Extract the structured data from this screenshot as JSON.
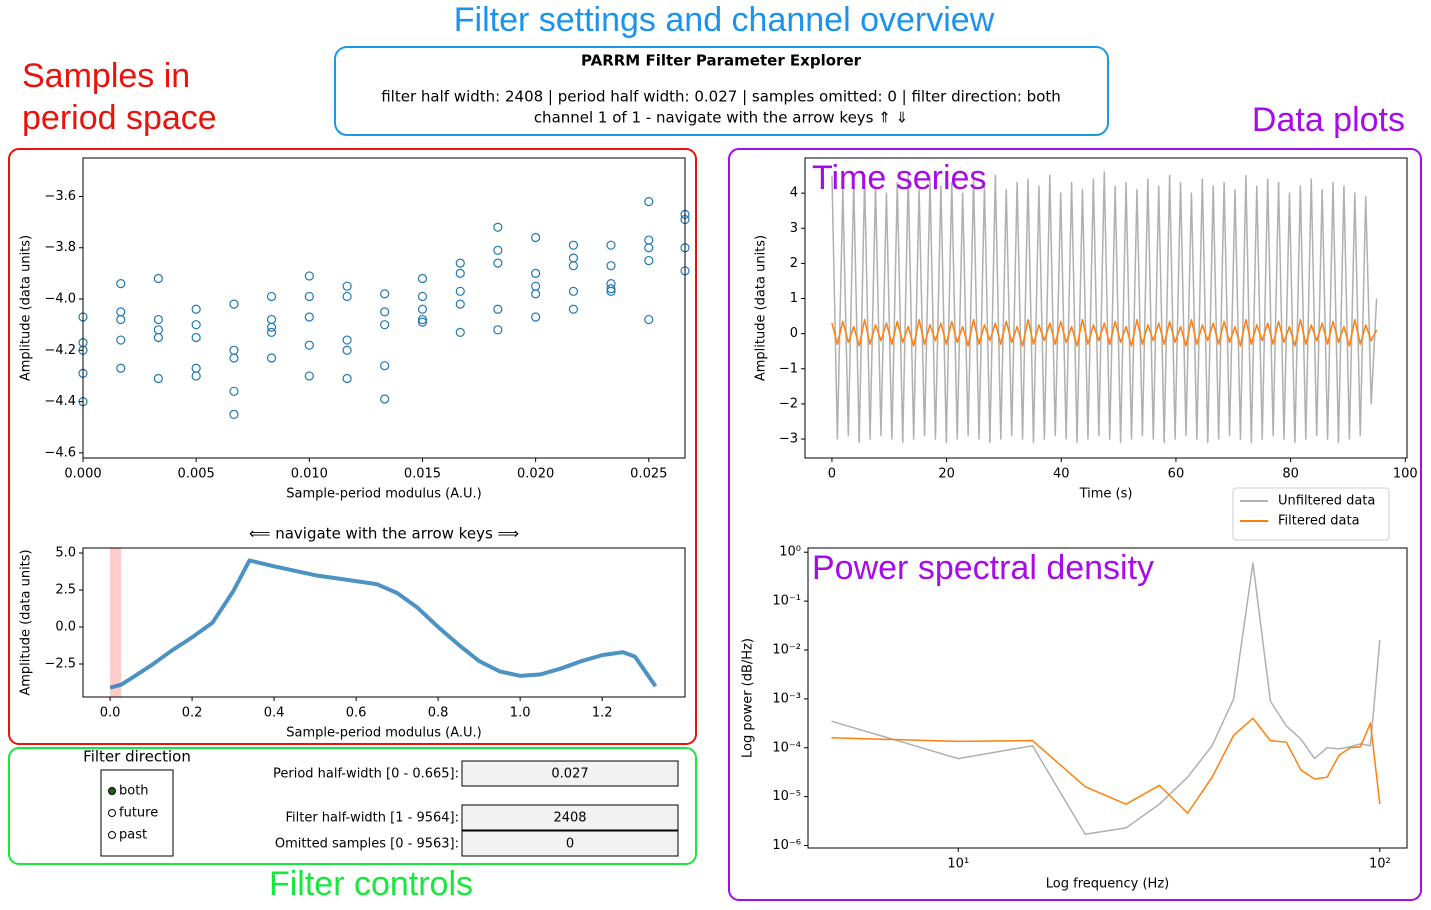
{
  "annotations": {
    "overview": "Filter settings and channel overview",
    "samples": [
      "Samples in",
      "period space"
    ],
    "data_plots": "Data plots",
    "controls": "Filter controls",
    "time_series": "Time series",
    "psd": "Power spectral density"
  },
  "header": {
    "title": "PARRM Filter Parameter Explorer",
    "settings": "filter half width: 2408 | period half width: 0.027 | samples omitted: 0 | filter direction: both",
    "channel": "channel 1 of 1 - navigate with the arrow keys  ⇑ ⇓"
  },
  "controls": {
    "direction_title": "Filter direction",
    "directions": [
      "both",
      "future",
      "past"
    ],
    "selected": "both",
    "fields": [
      {
        "label": "Period half-width [0 - 0.665]:",
        "value": "0.027"
      },
      {
        "label": "Filter half-width [1 - 9564]:",
        "value": "2408"
      },
      {
        "label": "Omitted samples [0 - 9563]:",
        "value": "0"
      }
    ]
  },
  "chart_data": [
    {
      "type": "scatter",
      "xlabel": "Sample-period modulus (A.U.)",
      "ylabel": "Amplitude (data units)",
      "color": "#1f77b4",
      "x": [
        0,
        0,
        0,
        0,
        0,
        0.00167,
        0.00167,
        0.00167,
        0.00167,
        0.00167,
        0.00333,
        0.00333,
        0.00333,
        0.00333,
        0.00333,
        0.005,
        0.005,
        0.005,
        0.005,
        0.005,
        0.00667,
        0.00667,
        0.00667,
        0.00667,
        0.00667,
        0.00833,
        0.00833,
        0.00833,
        0.00833,
        0.00833,
        0.01,
        0.01,
        0.01,
        0.01,
        0.01,
        0.01167,
        0.01167,
        0.01167,
        0.01167,
        0.01167,
        0.01333,
        0.01333,
        0.01333,
        0.01333,
        0.01333,
        0.015,
        0.015,
        0.015,
        0.015,
        0.015,
        0.01667,
        0.01667,
        0.01667,
        0.01667,
        0.01667,
        0.01833,
        0.01833,
        0.01833,
        0.01833,
        0.01833,
        0.02,
        0.02,
        0.02,
        0.02,
        0.02,
        0.02167,
        0.02167,
        0.02167,
        0.02167,
        0.02167,
        0.02333,
        0.02333,
        0.02333,
        0.02333,
        0.02333,
        0.025,
        0.025,
        0.025,
        0.025,
        0.025,
        0.0266,
        0.0266,
        0.0266,
        0.0266
      ],
      "values": [
        -4.07,
        -4.17,
        -4.2,
        -4.29,
        -4.4,
        -3.94,
        -4.05,
        -4.08,
        -4.16,
        -4.27,
        -3.92,
        -4.08,
        -4.12,
        -4.15,
        -4.31,
        -4.04,
        -4.1,
        -4.15,
        -4.27,
        -4.3,
        -4.02,
        -4.2,
        -4.23,
        -4.36,
        -4.45,
        -3.99,
        -4.08,
        -4.11,
        -4.13,
        -4.23,
        -3.91,
        -3.99,
        -4.07,
        -4.18,
        -4.3,
        -3.95,
        -3.99,
        -4.16,
        -4.2,
        -4.31,
        -3.98,
        -4.05,
        -4.1,
        -4.26,
        -4.39,
        -3.92,
        -3.99,
        -4.04,
        -4.08,
        -4.09,
        -3.86,
        -3.9,
        -3.97,
        -4.02,
        -4.13,
        -3.72,
        -3.81,
        -3.86,
        -4.04,
        -4.12,
        -3.76,
        -3.9,
        -3.95,
        -3.98,
        -4.07,
        -3.79,
        -3.84,
        -3.87,
        -3.97,
        -4.04,
        -3.79,
        -3.87,
        -3.94,
        -3.96,
        -3.97,
        -3.62,
        -3.77,
        -3.8,
        -3.85,
        -4.08,
        -3.67,
        -3.69,
        -3.8,
        -3.89
      ],
      "xlim": [
        0,
        0.0266
      ],
      "ylim": [
        -4.62,
        -3.45
      ],
      "xticks": [
        {
          "value": 0,
          "label": "0.000"
        },
        0.005,
        {
          "value": 0.01,
          "label": "0.010"
        },
        0.015,
        {
          "value": 0.02,
          "label": "0.020"
        },
        0.025
      ],
      "yticks": [
        {
          "value": -4.6,
          "label": "−4.6"
        },
        {
          "value": -4.4,
          "label": "−4.4"
        },
        {
          "value": -4.2,
          "label": "−4.2"
        },
        {
          "value": -4.0,
          "label": "−4.0"
        },
        {
          "value": -3.8,
          "label": "−3.8"
        },
        {
          "value": -3.6,
          "label": "−3.6"
        }
      ]
    },
    {
      "type": "line",
      "title": "⟸  navigate with the arrow keys  ⟹",
      "xlabel": "Sample-period modulus (A.U.)",
      "ylabel": "Amplitude (data units)",
      "color": "#1f77b4",
      "x": [
        0,
        0.027,
        0.05,
        0.1,
        0.15,
        0.2,
        0.25,
        0.3,
        0.34,
        0.4,
        0.5,
        0.6,
        0.65,
        0.7,
        0.75,
        0.8,
        0.85,
        0.9,
        0.95,
        1.0,
        1.05,
        1.1,
        1.15,
        1.2,
        1.25,
        1.28,
        1.33
      ],
      "values": [
        -4.1,
        -3.9,
        -3.5,
        -2.6,
        -1.6,
        -0.7,
        0.3,
        2.4,
        4.5,
        4.1,
        3.5,
        3.1,
        2.9,
        2.3,
        1.3,
        0.0,
        -1.2,
        -2.3,
        -3.0,
        -3.3,
        -3.2,
        -2.8,
        -2.3,
        -1.9,
        -1.7,
        -2.0,
        -4.0
      ],
      "span": [
        0,
        0.027
      ],
      "span_color": "#ffcccc",
      "xlim": [
        -0.066,
        1.402
      ],
      "ylim": [
        -4.73,
        5.34
      ],
      "xticks": [
        {
          "value": 0,
          "label": "0.0"
        },
        0.2,
        0.4,
        0.6,
        0.8,
        {
          "value": 1,
          "label": "1.0"
        },
        1.2
      ],
      "yticks": [
        {
          "value": -2.5,
          "label": "−2.5"
        },
        {
          "value": 0,
          "label": "0.0"
        },
        2.5,
        {
          "value": 5,
          "label": "5.0"
        }
      ]
    },
    {
      "type": "line",
      "xlabel": "Time (s)",
      "ylabel": "Amplitude (data units)",
      "legend": "below-right",
      "x": [
        0,
        0.95,
        1.9,
        2.85,
        3.8,
        4.75,
        5.7,
        6.65,
        7.6,
        8.55,
        9.5,
        10.45,
        11.4,
        12.35,
        13.3,
        14.25,
        15.2,
        16.15,
        17.1,
        18.05,
        19,
        19.95,
        20.9,
        21.85,
        22.8,
        23.75,
        24.7,
        25.65,
        26.6,
        27.55,
        28.5,
        29.45,
        30.4,
        31.35,
        32.3,
        33.25,
        34.2,
        35.15,
        36.1,
        37.05,
        38,
        38.95,
        39.9,
        40.85,
        41.8,
        42.75,
        43.7,
        44.65,
        45.6,
        46.55,
        47.5,
        48.45,
        49.4,
        50.35,
        51.3,
        52.25,
        53.2,
        54.15,
        55.1,
        56.05,
        57,
        57.95,
        58.9,
        59.85,
        60.8,
        61.75,
        62.7,
        63.65,
        64.6,
        65.55,
        66.5,
        67.45,
        68.4,
        69.35,
        70.3,
        71.25,
        72.2,
        73.15,
        74.1,
        75.05,
        76,
        76.95,
        77.9,
        78.85,
        79.8,
        80.75,
        81.7,
        82.65,
        83.6,
        84.55,
        85.5,
        86.45,
        87.4,
        88.35,
        89.3,
        90.25,
        91.2,
        92.15,
        93.1,
        94.05,
        95
      ],
      "series": [
        {
          "name": "Unfiltered data",
          "color": "#b0b0b0",
          "values": [
            4.5,
            -3.0,
            4.1,
            -2.9,
            4.3,
            -3.1,
            4.4,
            -3.0,
            4.2,
            -2.9,
            4.0,
            -3.0,
            4.3,
            -3.1,
            4.5,
            -3.0,
            4.1,
            -2.9,
            4.4,
            -3.0,
            4.2,
            -3.1,
            4.3,
            -3.0,
            4.0,
            -2.9,
            4.4,
            -3.0,
            4.2,
            -3.1,
            4.5,
            -3.0,
            4.1,
            -2.9,
            4.3,
            -3.0,
            4.4,
            -3.1,
            4.2,
            -3.0,
            4.5,
            -2.9,
            4.0,
            -3.0,
            4.3,
            -3.1,
            4.1,
            -3.0,
            4.4,
            -2.9,
            4.6,
            -3.0,
            4.2,
            -3.1,
            4.3,
            -3.0,
            4.1,
            -2.9,
            4.4,
            -3.0,
            4.2,
            -3.1,
            4.5,
            -3.0,
            4.3,
            -2.9,
            4.0,
            -3.0,
            4.4,
            -3.1,
            4.2,
            -3.0,
            4.3,
            -2.9,
            4.1,
            -3.0,
            4.5,
            -3.1,
            4.2,
            -3.0,
            4.4,
            -2.9,
            4.3,
            -3.0,
            4.0,
            -3.1,
            4.2,
            -3.0,
            4.4,
            -2.9,
            4.1,
            -3.0,
            4.3,
            -3.1,
            4.2,
            -3.0,
            4.0,
            -2.9,
            3.9,
            -2.0,
            1.0
          ]
        },
        {
          "name": "Filtered data",
          "color": "#ff7f0e",
          "values": [
            0.3,
            -0.3,
            0.35,
            -0.25,
            0.2,
            -0.35,
            0.4,
            -0.3,
            0.25,
            -0.2,
            0.3,
            -0.3,
            0.35,
            -0.25,
            0.2,
            -0.35,
            0.4,
            -0.3,
            0.25,
            -0.2,
            0.3,
            -0.3,
            0.35,
            -0.25,
            0.2,
            -0.35,
            0.4,
            -0.3,
            0.25,
            -0.2,
            0.3,
            -0.3,
            0.35,
            -0.25,
            0.2,
            -0.35,
            0.4,
            -0.3,
            0.25,
            -0.2,
            0.3,
            -0.3,
            0.35,
            -0.25,
            0.2,
            -0.35,
            0.4,
            -0.3,
            0.25,
            -0.2,
            0.3,
            -0.3,
            0.35,
            -0.25,
            0.2,
            -0.35,
            0.4,
            -0.3,
            0.25,
            -0.2,
            0.3,
            -0.3,
            0.35,
            -0.25,
            0.2,
            -0.35,
            0.4,
            -0.3,
            0.25,
            -0.2,
            0.3,
            -0.3,
            0.35,
            -0.25,
            0.2,
            -0.35,
            0.4,
            -0.3,
            0.25,
            -0.2,
            0.3,
            -0.3,
            0.35,
            -0.25,
            0.2,
            -0.35,
            0.4,
            -0.3,
            0.25,
            -0.2,
            0.3,
            -0.3,
            0.35,
            -0.25,
            0.2,
            -0.35,
            0.4,
            -0.3,
            0.25,
            -0.2,
            0.1
          ]
        }
      ],
      "xlim": [
        -4.7,
        100.3
      ],
      "ylim": [
        -3.54,
        5.0
      ],
      "xticks": [
        0,
        20,
        40,
        60,
        80,
        100
      ],
      "yticks": [
        {
          "value": -3,
          "label": "−3"
        },
        {
          "value": -2,
          "label": "−2"
        },
        {
          "value": -1,
          "label": "−1"
        },
        0,
        1,
        2,
        3,
        4
      ]
    },
    {
      "type": "line",
      "xlabel": "Log frequency (Hz)",
      "ylabel": "Log power (dB/Hz)",
      "xlog": true,
      "ylog": true,
      "x": [
        5,
        10,
        15,
        20,
        25,
        30,
        35,
        40,
        45,
        50,
        55,
        60,
        65,
        70,
        75,
        80,
        85,
        90,
        95,
        100
      ],
      "series": [
        {
          "name": "Unfiltered data",
          "color": "#b0b0b0",
          "values": [
            0.00035,
            6e-05,
            0.00011,
            1.7e-06,
            2.3e-06,
            7e-06,
            2.5e-05,
            0.00011,
            0.001,
            0.6,
            0.0009,
            0.00028,
            0.00015,
            6e-05,
            0.0001,
            9.5e-05,
            0.000105,
            0.00012,
            0.00011,
            0.016
          ]
        },
        {
          "name": "Filtered data",
          "color": "#ff7f0e",
          "values": [
            0.00016,
            0.000135,
            0.00014,
            1.6e-05,
            7e-06,
            1.7e-05,
            4.6e-06,
            2.5e-05,
            0.00018,
            0.0004,
            0.00014,
            0.00013,
            3.5e-05,
            2.3e-05,
            2.5e-05,
            7e-05,
            0.0001,
            0.000105,
            0.00032,
            7e-06
          ]
        }
      ],
      "xlim": [
        4.4,
        116
      ],
      "ylim": [
        8.9e-07,
        1.22
      ],
      "xticks": [
        {
          "value": 10,
          "label": "10¹"
        },
        {
          "value": 100,
          "label": "10²"
        }
      ],
      "yticks": [
        {
          "value": 1e-06,
          "label": "10⁻⁶"
        },
        {
          "value": 1e-05,
          "label": "10⁻⁵"
        },
        {
          "value": 0.0001,
          "label": "10⁻⁴"
        },
        {
          "value": 0.001,
          "label": "10⁻³"
        },
        {
          "value": 0.01,
          "label": "10⁻²"
        },
        {
          "value": 0.1,
          "label": "10⁻¹"
        },
        {
          "value": 1,
          "label": "10⁰"
        }
      ]
    }
  ]
}
